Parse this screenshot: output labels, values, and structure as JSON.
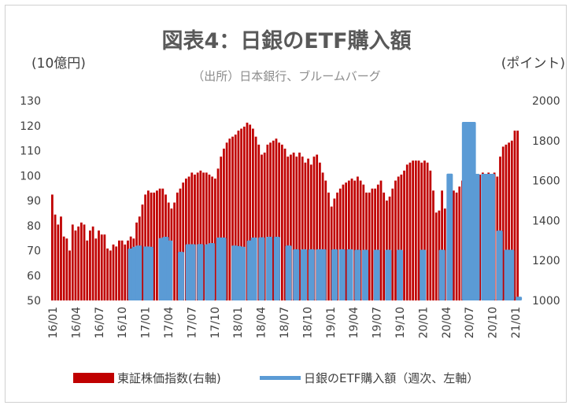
{
  "chart_data": {
    "type": "bar",
    "title": "図表4：日銀のETF購入額",
    "subtitle": "（出所）日本銀行、ブルームバーグ",
    "left_axis_unit": "(10億円)",
    "right_axis_unit": "(ポイント)",
    "left_ylim": [
      50,
      130
    ],
    "left_ticks": [
      "50",
      "60",
      "70",
      "80",
      "90",
      "100",
      "110",
      "120",
      "130"
    ],
    "right_ylim": [
      1000,
      2000
    ],
    "right_ticks": [
      "1000",
      "1200",
      "1400",
      "1600",
      "1800",
      "2000"
    ],
    "x_ticks": [
      "16/01",
      "16/04",
      "16/07",
      "16/10",
      "17/01",
      "17/04",
      "17/07",
      "17/10",
      "18/01",
      "18/04",
      "18/07",
      "18/10",
      "19/01",
      "19/04",
      "19/07",
      "19/10",
      "20/01",
      "20/04",
      "20/07",
      "20/10",
      "21/01"
    ],
    "grid": false,
    "legend_position": "bottom",
    "series": [
      {
        "name": "東証株価指数(右軸)",
        "axis": "right",
        "color": "#c00000",
        "values": [
          1530,
          1430,
          1380,
          1420,
          1320,
          1310,
          1250,
          1380,
          1350,
          1370,
          1390,
          1380,
          1300,
          1350,
          1370,
          1310,
          1350,
          1330,
          1330,
          1260,
          1250,
          1280,
          1270,
          1300,
          1300,
          1280,
          1300,
          1320,
          1310,
          1390,
          1420,
          1480,
          1530,
          1550,
          1540,
          1540,
          1550,
          1560,
          1560,
          1530,
          1490,
          1460,
          1490,
          1540,
          1560,
          1590,
          1610,
          1620,
          1640,
          1630,
          1640,
          1650,
          1640,
          1640,
          1630,
          1620,
          1610,
          1660,
          1720,
          1760,
          1790,
          1810,
          1820,
          1830,
          1850,
          1860,
          1870,
          1890,
          1880,
          1860,
          1820,
          1780,
          1730,
          1740,
          1780,
          1790,
          1800,
          1810,
          1790,
          1780,
          1760,
          1720,
          1730,
          1740,
          1720,
          1740,
          1720,
          1690,
          1710,
          1680,
          1720,
          1730,
          1690,
          1640,
          1600,
          1540,
          1470,
          1510,
          1540,
          1560,
          1580,
          1590,
          1600,
          1610,
          1600,
          1620,
          1600,
          1580,
          1540,
          1540,
          1560,
          1560,
          1580,
          1600,
          1540,
          1500,
          1520,
          1560,
          1600,
          1620,
          1630,
          1650,
          1680,
          1690,
          1700,
          1700,
          1700,
          1690,
          1700,
          1690,
          1650,
          1550,
          1440,
          1450,
          1550,
          1460,
          1500,
          1550,
          1550,
          1540,
          1570,
          1600,
          1570,
          1580,
          1560,
          1560,
          1600,
          1630,
          1640,
          1630,
          1640,
          1600,
          1640,
          1620,
          1720,
          1770,
          1780,
          1790,
          1800,
          1850,
          1850
        ]
      },
      {
        "name": "日銀のETF購入額（週次、左軸）",
        "axis": "left",
        "color": "#5b9bd5",
        "values": [
          [
            20,
            70.8
          ],
          [
            21,
            71.5
          ],
          [
            22,
            72
          ],
          [
            24,
            71.6
          ],
          [
            25,
            71.5
          ],
          [
            28,
            75
          ],
          [
            29,
            75.5
          ],
          [
            30,
            74
          ],
          [
            33,
            69.5
          ],
          [
            35,
            72.5
          ],
          [
            36,
            72.5
          ],
          [
            38,
            72.6
          ],
          [
            40,
            72.5
          ],
          [
            41,
            73
          ],
          [
            43,
            75.2
          ],
          [
            44,
            75.2
          ],
          [
            47,
            72
          ],
          [
            48,
            71.8
          ],
          [
            49,
            71.5
          ],
          [
            51,
            74
          ],
          [
            52,
            75.2
          ],
          [
            54,
            75.3
          ],
          [
            56,
            75.5
          ],
          [
            58,
            75.5
          ],
          [
            61,
            72
          ],
          [
            63,
            70.5
          ],
          [
            65,
            70.5
          ],
          [
            67,
            70.5
          ],
          [
            69,
            70.5
          ],
          [
            70,
            70.5
          ],
          [
            73,
            70.5
          ],
          [
            75,
            70.5
          ],
          [
            77,
            70.5
          ],
          [
            79,
            70.3
          ],
          [
            81,
            70.3
          ],
          [
            84,
            70.3
          ],
          [
            87,
            70.3
          ],
          [
            90,
            70.3
          ],
          [
            96,
            70.3
          ],
          [
            101,
            70.3
          ],
          [
            103,
            100.8
          ],
          [
            107,
            121.5
          ],
          [
            108,
            121.5
          ],
          [
            109,
            121.5
          ],
          [
            110,
            100.7
          ],
          [
            112,
            100.7
          ],
          [
            113,
            100.7
          ],
          [
            114,
            100.7
          ],
          [
            116,
            78
          ],
          [
            118,
            70.3
          ],
          [
            119,
            70.3
          ],
          [
            121,
            51.5
          ]
        ]
      }
    ]
  }
}
